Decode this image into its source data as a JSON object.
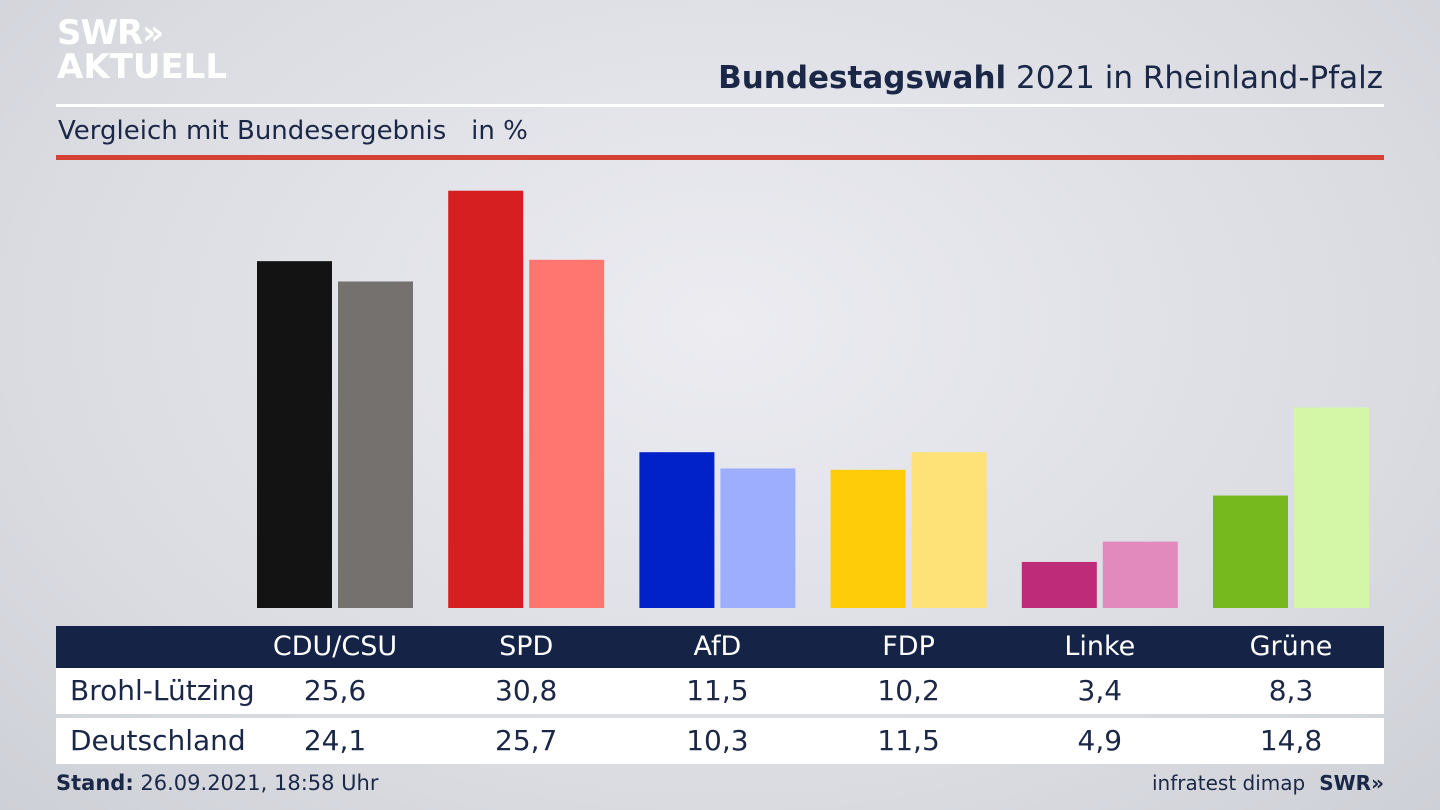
{
  "logo": {
    "line1": "SWR»",
    "line2": "AKTUELL"
  },
  "header": {
    "title_bold": "Bundestagswahl",
    "title_rest": " 2021 in Rheinland-Pfalz"
  },
  "subtitle": "Vergleich mit Bundesergebnis   in %",
  "chart_data": {
    "type": "bar",
    "categories": [
      "CDU/CSU",
      "SPD",
      "AfD",
      "FDP",
      "Linke",
      "Grüne"
    ],
    "series": [
      {
        "name": "Brohl-Lützing",
        "values": [
          25.6,
          30.8,
          11.5,
          10.2,
          3.4,
          8.3
        ],
        "colors": [
          "#131313",
          "#d51f20",
          "#0122c8",
          "#fecc08",
          "#be2b78",
          "#76b91e"
        ]
      },
      {
        "name": "Deutschland",
        "values": [
          24.1,
          25.7,
          10.3,
          11.5,
          4.9,
          14.8
        ],
        "colors": [
          "#74716f",
          "#ff7670",
          "#9daeff",
          "#fee177",
          "#e28abe",
          "#d4f6a7"
        ]
      }
    ],
    "value_labels": {
      "Brohl-Lützing": [
        "25,6",
        "30,8",
        "11,5",
        "10,2",
        "3,4",
        "8,3"
      ],
      "Deutschland": [
        "24,1",
        "25,7",
        "10,3",
        "11,5",
        "4,9",
        "14,8"
      ]
    },
    "ylim": [
      0,
      31
    ],
    "grid": false
  },
  "footer": {
    "stand_label": "Stand:",
    "stand_value": " 26.09.2021, 18:58 Uhr",
    "source": "infratest dimap",
    "brand": "SWR»"
  }
}
